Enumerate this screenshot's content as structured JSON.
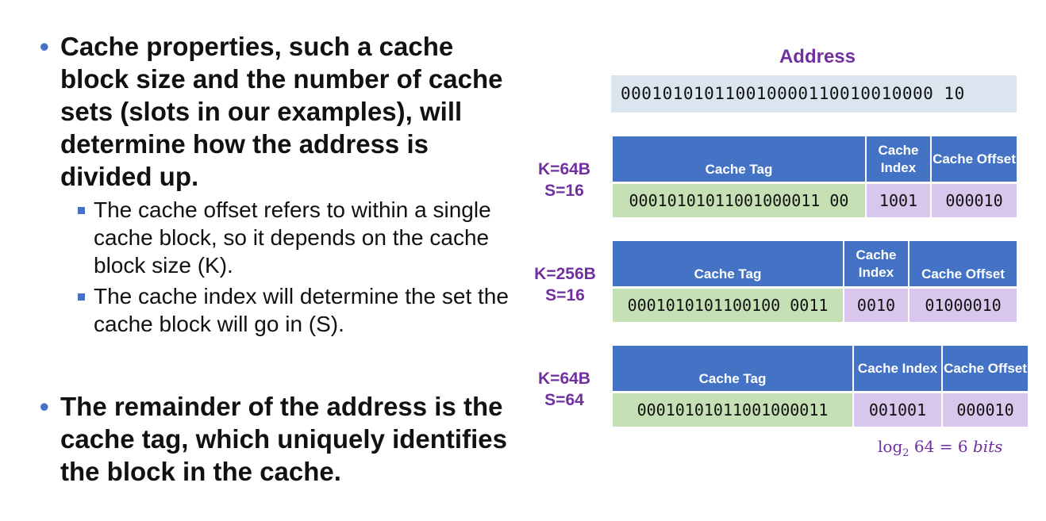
{
  "bullets": [
    {
      "text": "Cache properties, such a cache block size and the number of cache sets (slots in our examples), will determine how the address is divided up.",
      "sub": [
        "The cache offset refers to within a single cache block, so it depends on the cache block size (K).",
        "The cache index will determine the set the cache block will go in (S)."
      ]
    },
    {
      "text": "The remainder of the address is the cache tag, which uniquely identifies the block in the cache."
    }
  ],
  "address": {
    "title": "Address",
    "bits": "000101010110010000110010010000 10"
  },
  "configs": [
    {
      "k_label": "K=64B",
      "s_label": "S=16",
      "headers": {
        "tag": "Cache Tag",
        "index": "Cache Index",
        "offset": "Cache Offset"
      },
      "tag": "00010101011001000011 00",
      "index": "1001",
      "offset": "000010"
    },
    {
      "k_label": "K=256B",
      "s_label": "S=16",
      "headers": {
        "tag": "Cache Tag",
        "index": "Cache Index",
        "offset": "Cache Offset"
      },
      "tag": "0001010101100100 0011",
      "index": "0010",
      "offset": "01000010"
    },
    {
      "k_label": "K=64B",
      "s_label": "S=64",
      "headers": {
        "tag": "Cache Tag",
        "index": "Cache Index",
        "offset": "Cache Offset"
      },
      "tag": "00010101011001000011",
      "index": "001001",
      "offset": "000010"
    }
  ],
  "note": {
    "log": "log",
    "base": "2",
    "expr": "64 = 6 ",
    "unit": "bits"
  },
  "colors": {
    "header": "#4472c4",
    "tag": "#c5e0b4",
    "index_offset": "#d9c6ec",
    "address_bar": "#dae5f0",
    "accent": "#7030a0"
  }
}
